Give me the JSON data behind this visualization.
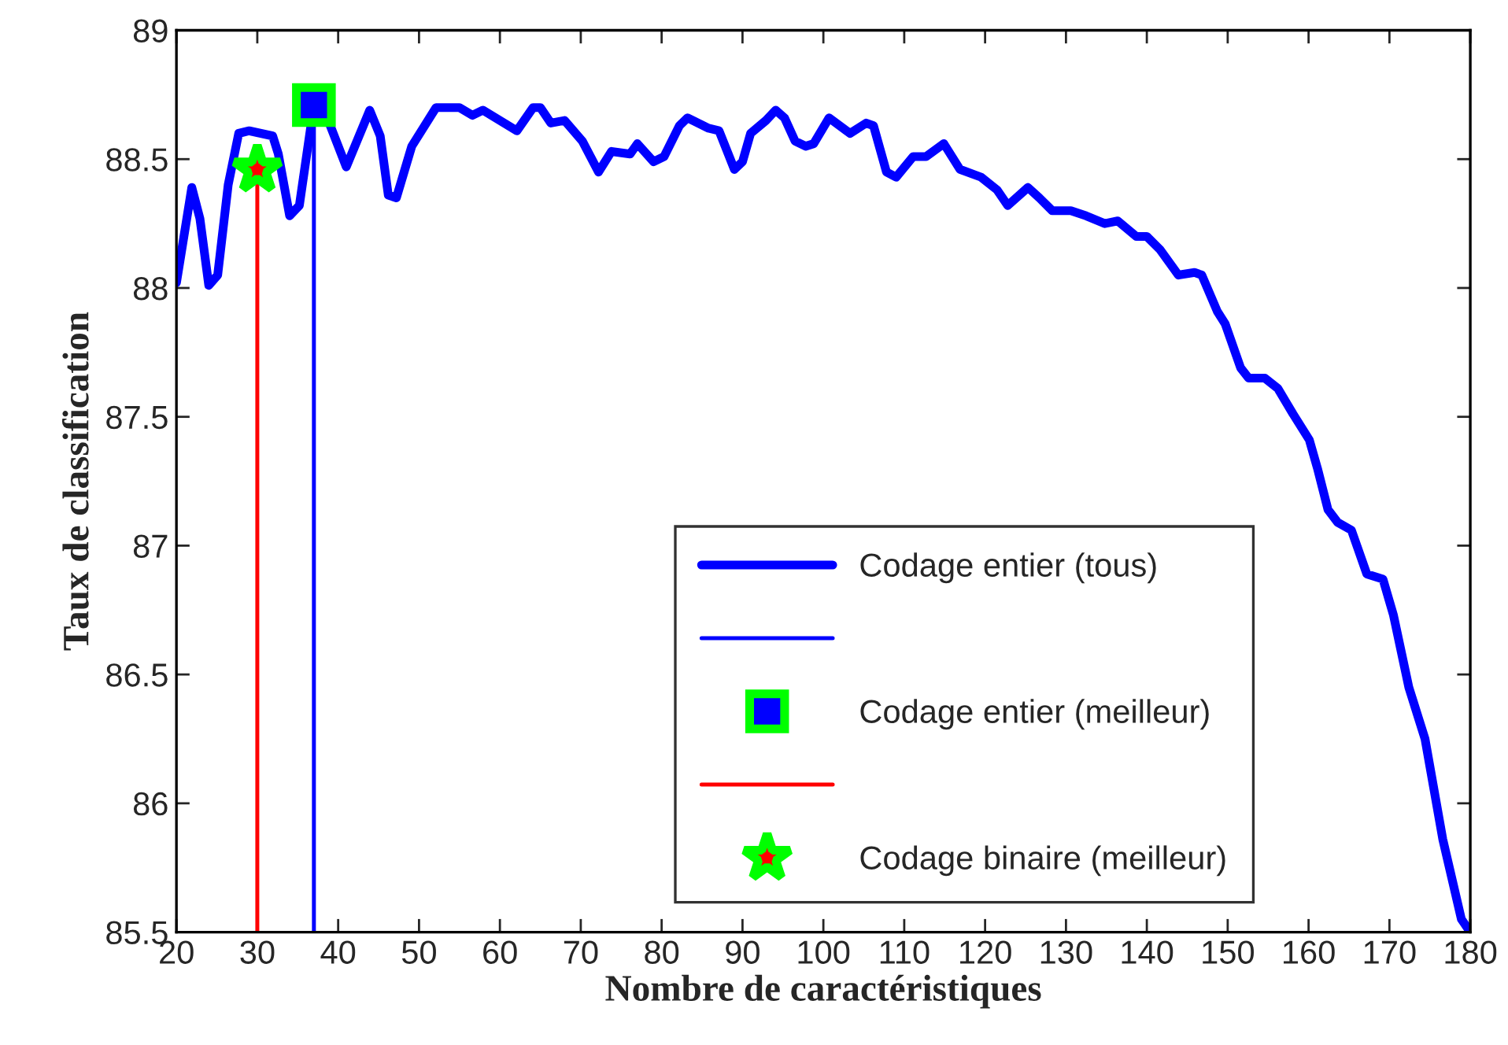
{
  "chart_data": {
    "type": "line",
    "xlabel": "Nombre de caractéristiques",
    "ylabel": "Taux de classification",
    "xlim": [
      20,
      180
    ],
    "xticks": [
      20,
      30,
      40,
      50,
      60,
      70,
      80,
      90,
      100,
      110,
      120,
      130,
      140,
      150,
      160,
      170,
      180
    ],
    "ylim": [
      85.5,
      89
    ],
    "yticks": [
      85.5,
      86,
      86.5,
      87,
      87.5,
      88,
      88.5,
      89
    ],
    "grid": false,
    "legend": "bottom right",
    "series": [
      {
        "name": "Codage entier (tous)",
        "color": "#0000ff",
        "line_style": "solid",
        "marker": "none",
        "x": [
          20,
          21.9,
          22.9,
          24,
          25.1,
          26.4,
          27.7,
          29,
          31.9,
          32.6,
          34,
          35.2,
          37,
          38.9,
          41,
          43.9,
          45.2,
          46.2,
          47.2,
          49.1,
          52.1,
          55,
          56.6,
          57.9,
          62.1,
          64.1,
          65,
          66.3,
          68,
          70.2,
          72.2,
          73.8,
          76.1,
          77,
          79,
          80.3,
          82.2,
          83.2,
          85.8,
          87.1,
          89,
          90,
          91,
          92.9,
          94.1,
          95.2,
          96.5,
          97.8,
          98.8,
          100.7,
          103.3,
          105.3,
          106.2,
          107.8,
          109,
          111.1,
          112.7,
          114.9,
          116.9,
          119.5,
          121.5,
          122.8,
          125.3,
          126.7,
          128.3,
          130.6,
          132.5,
          134.8,
          136.4,
          138.7,
          140,
          141.6,
          143.9,
          145.9,
          146.8,
          148.7,
          149.7,
          151.6,
          152.6,
          154.6,
          156.2,
          158.1,
          160.1,
          161.1,
          162.4,
          163.6,
          165.3,
          167.2,
          169.2,
          170.5,
          172.4,
          174.4,
          176.6,
          178.9,
          180
        ],
        "values": [
          88.02,
          88.39,
          88.27,
          88.01,
          88.05,
          88.4,
          88.6,
          88.61,
          88.59,
          88.52,
          88.28,
          88.32,
          88.71,
          88.64,
          88.47,
          88.69,
          88.59,
          88.36,
          88.35,
          88.55,
          88.7,
          88.7,
          88.67,
          88.69,
          88.61,
          88.7,
          88.7,
          88.64,
          88.65,
          88.57,
          88.45,
          88.53,
          88.52,
          88.56,
          88.49,
          88.51,
          88.63,
          88.66,
          88.62,
          88.61,
          88.46,
          88.49,
          88.6,
          88.65,
          88.69,
          88.66,
          88.57,
          88.55,
          88.56,
          88.66,
          88.6,
          88.64,
          88.63,
          88.45,
          88.43,
          88.51,
          88.51,
          88.56,
          88.46,
          88.43,
          88.38,
          88.32,
          88.39,
          88.35,
          88.3,
          88.3,
          88.28,
          88.25,
          88.26,
          88.2,
          88.2,
          88.15,
          88.05,
          88.06,
          88.05,
          87.91,
          87.86,
          87.69,
          87.65,
          87.65,
          87.61,
          87.51,
          87.41,
          87.3,
          87.14,
          87.09,
          87.06,
          86.89,
          86.87,
          86.73,
          86.45,
          86.25,
          85.86,
          85.55,
          85.5
        ]
      },
      {
        "color": "#0000ff",
        "type": "line",
        "line_style": "solid",
        "marker": "none",
        "x": [
          37,
          37
        ],
        "values": [
          85.5,
          88.71
        ]
      },
      {
        "name": "Codage entier (meilleur)",
        "color": "#0000ff",
        "type": "scatter",
        "marker": "square",
        "x": [
          37
        ],
        "values": [
          88.71
        ]
      },
      {
        "color": "#ff0000",
        "type": "line",
        "line_style": "solid",
        "marker": "none",
        "x": [
          30,
          30
        ],
        "values": [
          85.5,
          88.46
        ]
      },
      {
        "name": "Codage binaire (meilleur)",
        "color": "#ff0000",
        "type": "scatter",
        "marker": "star",
        "x": [
          30
        ],
        "values": [
          88.46
        ]
      }
    ]
  }
}
